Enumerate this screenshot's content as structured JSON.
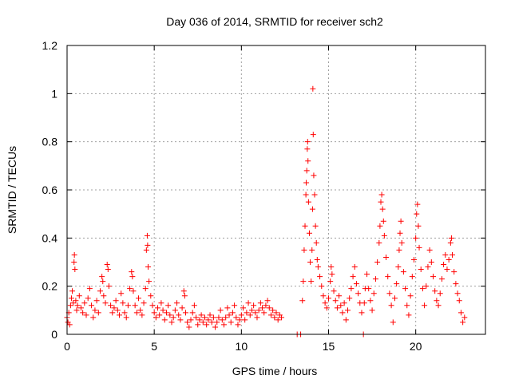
{
  "chart_data": {
    "type": "scatter",
    "title": "Day 036 of 2014, SRMTID for receiver sch2",
    "xlabel": "GPS time / hours",
    "ylabel": "SRMTID / TECUs",
    "xlim": [
      0,
      24
    ],
    "ylim": [
      0,
      1.2
    ],
    "xticks": [
      0,
      5,
      10,
      15,
      20
    ],
    "xtick_labels": [
      "0",
      "5",
      "10",
      "15",
      "20"
    ],
    "yticks": [
      0,
      0.2,
      0.4,
      0.6,
      0.8,
      1,
      1.2
    ],
    "ytick_labels": [
      "0",
      "0.2",
      "0.4",
      "0.6",
      "0.8",
      "1",
      "1.2"
    ],
    "grid": true,
    "marker": "+",
    "color": "#ff0000",
    "series": [
      {
        "name": "sch2",
        "points": [
          [
            0.0,
            0.07
          ],
          [
            0.05,
            0.05
          ],
          [
            0.1,
            0.09
          ],
          [
            0.15,
            0.04
          ],
          [
            0.2,
            0.12
          ],
          [
            0.25,
            0.15
          ],
          [
            0.3,
            0.18
          ],
          [
            0.35,
            0.13
          ],
          [
            0.4,
            0.3
          ],
          [
            0.42,
            0.33
          ],
          [
            0.45,
            0.27
          ],
          [
            0.5,
            0.14
          ],
          [
            0.55,
            0.1
          ],
          [
            0.6,
            0.12
          ],
          [
            0.7,
            0.16
          ],
          [
            0.8,
            0.11
          ],
          [
            0.9,
            0.09
          ],
          [
            1.0,
            0.13
          ],
          [
            1.1,
            0.08
          ],
          [
            1.2,
            0.15
          ],
          [
            1.3,
            0.19
          ],
          [
            1.4,
            0.12
          ],
          [
            1.5,
            0.07
          ],
          [
            1.6,
            0.1
          ],
          [
            1.7,
            0.14
          ],
          [
            1.8,
            0.09
          ],
          [
            1.9,
            0.18
          ],
          [
            2.0,
            0.24
          ],
          [
            2.05,
            0.22
          ],
          [
            2.1,
            0.16
          ],
          [
            2.2,
            0.13
          ],
          [
            2.3,
            0.29
          ],
          [
            2.35,
            0.27
          ],
          [
            2.4,
            0.2
          ],
          [
            2.5,
            0.12
          ],
          [
            2.6,
            0.09
          ],
          [
            2.7,
            0.11
          ],
          [
            2.8,
            0.14
          ],
          [
            2.9,
            0.1
          ],
          [
            3.0,
            0.08
          ],
          [
            3.1,
            0.17
          ],
          [
            3.2,
            0.13
          ],
          [
            3.3,
            0.09
          ],
          [
            3.4,
            0.07
          ],
          [
            3.5,
            0.12
          ],
          [
            3.6,
            0.19
          ],
          [
            3.7,
            0.26
          ],
          [
            3.75,
            0.24
          ],
          [
            3.8,
            0.18
          ],
          [
            3.9,
            0.12
          ],
          [
            4.0,
            0.09
          ],
          [
            4.1,
            0.15
          ],
          [
            4.2,
            0.1
          ],
          [
            4.3,
            0.08
          ],
          [
            4.4,
            0.13
          ],
          [
            4.5,
            0.19
          ],
          [
            4.55,
            0.35
          ],
          [
            4.6,
            0.41
          ],
          [
            4.62,
            0.37
          ],
          [
            4.65,
            0.28
          ],
          [
            4.7,
            0.22
          ],
          [
            4.8,
            0.16
          ],
          [
            4.9,
            0.12
          ],
          [
            5.0,
            0.09
          ],
          [
            5.1,
            0.07
          ],
          [
            5.2,
            0.11
          ],
          [
            5.3,
            0.08
          ],
          [
            5.4,
            0.13
          ],
          [
            5.5,
            0.1
          ],
          [
            5.6,
            0.06
          ],
          [
            5.7,
            0.09
          ],
          [
            5.8,
            0.12
          ],
          [
            5.9,
            0.08
          ],
          [
            6.0,
            0.05
          ],
          [
            6.1,
            0.07
          ],
          [
            6.2,
            0.1
          ],
          [
            6.3,
            0.13
          ],
          [
            6.4,
            0.08
          ],
          [
            6.5,
            0.06
          ],
          [
            6.6,
            0.11
          ],
          [
            6.7,
            0.18
          ],
          [
            6.75,
            0.16
          ],
          [
            6.8,
            0.09
          ],
          [
            6.9,
            0.05
          ],
          [
            7.0,
            0.03
          ],
          [
            7.1,
            0.06
          ],
          [
            7.2,
            0.09
          ],
          [
            7.3,
            0.12
          ],
          [
            7.4,
            0.07
          ],
          [
            7.5,
            0.04
          ],
          [
            7.6,
            0.06
          ],
          [
            7.7,
            0.08
          ],
          [
            7.8,
            0.05
          ],
          [
            7.9,
            0.07
          ],
          [
            8.0,
            0.04
          ],
          [
            8.1,
            0.06
          ],
          [
            8.2,
            0.08
          ],
          [
            8.3,
            0.05
          ],
          [
            8.4,
            0.07
          ],
          [
            8.5,
            0.03
          ],
          [
            8.6,
            0.05
          ],
          [
            8.7,
            0.07
          ],
          [
            8.8,
            0.1
          ],
          [
            8.9,
            0.06
          ],
          [
            9.0,
            0.04
          ],
          [
            9.1,
            0.07
          ],
          [
            9.2,
            0.11
          ],
          [
            9.3,
            0.08
          ],
          [
            9.4,
            0.05
          ],
          [
            9.5,
            0.09
          ],
          [
            9.6,
            0.12
          ],
          [
            9.7,
            0.07
          ],
          [
            9.8,
            0.04
          ],
          [
            9.9,
            0.06
          ],
          [
            10.0,
            0.08
          ],
          [
            10.1,
            0.11
          ],
          [
            10.2,
            0.06
          ],
          [
            10.3,
            0.09
          ],
          [
            10.4,
            0.13
          ],
          [
            10.5,
            0.08
          ],
          [
            10.6,
            0.1
          ],
          [
            10.7,
            0.12
          ],
          [
            10.8,
            0.09
          ],
          [
            10.9,
            0.07
          ],
          [
            11.0,
            0.1
          ],
          [
            11.1,
            0.13
          ],
          [
            11.2,
            0.11
          ],
          [
            11.3,
            0.09
          ],
          [
            11.4,
            0.12
          ],
          [
            11.5,
            0.14
          ],
          [
            11.6,
            0.11
          ],
          [
            11.7,
            0.08
          ],
          [
            11.8,
            0.1
          ],
          [
            11.9,
            0.07
          ],
          [
            12.0,
            0.09
          ],
          [
            12.1,
            0.06
          ],
          [
            12.2,
            0.08
          ],
          [
            12.3,
            0.07
          ],
          [
            13.2,
            0.0
          ],
          [
            13.4,
            0.0
          ],
          [
            13.5,
            0.14
          ],
          [
            13.55,
            0.22
          ],
          [
            13.6,
            0.35
          ],
          [
            13.65,
            0.45
          ],
          [
            13.7,
            0.58
          ],
          [
            13.72,
            0.63
          ],
          [
            13.75,
            0.68
          ],
          [
            13.78,
            0.77
          ],
          [
            13.8,
            0.8
          ],
          [
            13.82,
            0.72
          ],
          [
            13.85,
            0.55
          ],
          [
            13.9,
            0.42
          ],
          [
            13.95,
            0.3
          ],
          [
            14.0,
            0.22
          ],
          [
            14.05,
            0.35
          ],
          [
            14.08,
            0.52
          ],
          [
            14.1,
            1.02
          ],
          [
            14.12,
            0.83
          ],
          [
            14.15,
            0.66
          ],
          [
            14.2,
            0.58
          ],
          [
            14.25,
            0.45
          ],
          [
            14.3,
            0.38
          ],
          [
            14.35,
            0.31
          ],
          [
            14.4,
            0.28
          ],
          [
            14.5,
            0.24
          ],
          [
            14.6,
            0.2
          ],
          [
            14.7,
            0.16
          ],
          [
            14.8,
            0.13
          ],
          [
            14.9,
            0.11
          ],
          [
            15.0,
            0.15
          ],
          [
            15.1,
            0.22
          ],
          [
            15.15,
            0.28
          ],
          [
            15.2,
            0.25
          ],
          [
            15.3,
            0.18
          ],
          [
            15.4,
            0.14
          ],
          [
            15.5,
            0.11
          ],
          [
            15.6,
            0.16
          ],
          [
            15.7,
            0.12
          ],
          [
            15.8,
            0.09
          ],
          [
            15.9,
            0.13
          ],
          [
            16.0,
            0.06
          ],
          [
            16.1,
            0.1
          ],
          [
            16.2,
            0.15
          ],
          [
            16.3,
            0.19
          ],
          [
            16.4,
            0.24
          ],
          [
            16.5,
            0.28
          ],
          [
            16.6,
            0.21
          ],
          [
            16.7,
            0.17
          ],
          [
            16.8,
            0.13
          ],
          [
            16.9,
            0.09
          ],
          [
            17.0,
            0.0
          ],
          [
            17.05,
            0.13
          ],
          [
            17.1,
            0.19
          ],
          [
            17.2,
            0.25
          ],
          [
            17.3,
            0.19
          ],
          [
            17.4,
            0.14
          ],
          [
            17.5,
            0.1
          ],
          [
            17.6,
            0.17
          ],
          [
            17.7,
            0.23
          ],
          [
            17.8,
            0.3
          ],
          [
            17.9,
            0.38
          ],
          [
            17.95,
            0.45
          ],
          [
            18.0,
            0.55
          ],
          [
            18.05,
            0.58
          ],
          [
            18.1,
            0.52
          ],
          [
            18.15,
            0.47
          ],
          [
            18.2,
            0.41
          ],
          [
            18.3,
            0.32
          ],
          [
            18.4,
            0.24
          ],
          [
            18.5,
            0.17
          ],
          [
            18.6,
            0.12
          ],
          [
            18.7,
            0.05
          ],
          [
            18.8,
            0.15
          ],
          [
            18.9,
            0.21
          ],
          [
            19.0,
            0.28
          ],
          [
            19.05,
            0.35
          ],
          [
            19.1,
            0.42
          ],
          [
            19.15,
            0.47
          ],
          [
            19.2,
            0.38
          ],
          [
            19.3,
            0.26
          ],
          [
            19.4,
            0.19
          ],
          [
            19.5,
            0.12
          ],
          [
            19.6,
            0.08
          ],
          [
            19.7,
            0.16
          ],
          [
            19.8,
            0.24
          ],
          [
            19.9,
            0.31
          ],
          [
            20.0,
            0.4
          ],
          [
            20.05,
            0.5
          ],
          [
            20.1,
            0.54
          ],
          [
            20.15,
            0.45
          ],
          [
            20.2,
            0.36
          ],
          [
            20.3,
            0.27
          ],
          [
            20.4,
            0.19
          ],
          [
            20.5,
            0.12
          ],
          [
            20.6,
            0.2
          ],
          [
            20.7,
            0.28
          ],
          [
            20.8,
            0.35
          ],
          [
            20.9,
            0.3
          ],
          [
            21.0,
            0.24
          ],
          [
            21.1,
            0.18
          ],
          [
            21.2,
            0.14
          ],
          [
            21.3,
            0.12
          ],
          [
            21.4,
            0.17
          ],
          [
            21.5,
            0.23
          ],
          [
            21.6,
            0.29
          ],
          [
            21.7,
            0.33
          ],
          [
            21.8,
            0.27
          ],
          [
            21.9,
            0.31
          ],
          [
            22.0,
            0.38
          ],
          [
            22.05,
            0.4
          ],
          [
            22.1,
            0.33
          ],
          [
            22.2,
            0.26
          ],
          [
            22.3,
            0.21
          ],
          [
            22.4,
            0.17
          ],
          [
            22.5,
            0.14
          ],
          [
            22.6,
            0.09
          ],
          [
            22.7,
            0.05
          ],
          [
            22.8,
            0.07
          ]
        ]
      }
    ]
  }
}
